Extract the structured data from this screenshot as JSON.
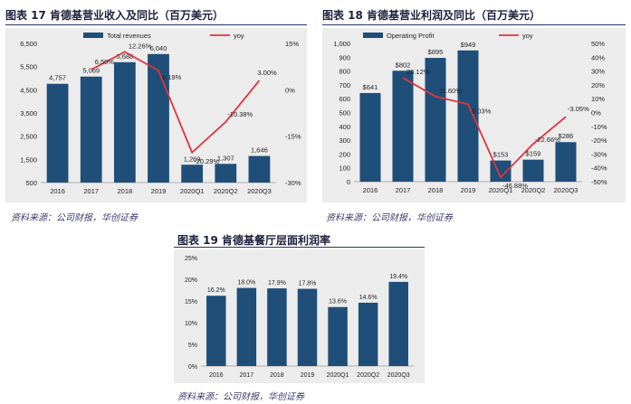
{
  "charts": [
    {
      "title": "图表 17   肯德基营业收入及同比（百万美元）",
      "source": "资料来源：公司财报，华创证券"
    },
    {
      "title": "图表 18   肯德基营业利润及同比（百万美元）",
      "source": "资料来源：公司财报，华创证券"
    },
    {
      "title": "图表 19   肯德基餐厅层面利润率",
      "source": "资料来源：公司财报，华创证券"
    }
  ],
  "colors": {
    "bar": "#1f4e79",
    "line": "#e0343c",
    "panel": "#ececec",
    "title": "#1f1f3d"
  },
  "chart_data": [
    {
      "type": "bar",
      "title": "肯德基营业收入及同比（百万美元）",
      "categories": [
        "2016",
        "2017",
        "2018",
        "2019",
        "2020Q1",
        "2020Q2",
        "2020Q3"
      ],
      "series": [
        {
          "name": "Total revenues",
          "type": "bar",
          "axis": "left",
          "values": [
            4757,
            5069,
            5688,
            6040,
            1269,
            1307,
            1646
          ],
          "labels": [
            "4,757",
            "5,069",
            "5,688",
            "6,040",
            "1,269",
            "1,307",
            "1,646"
          ]
        },
        {
          "name": "yoy",
          "type": "line",
          "axis": "right",
          "values": [
            null,
            6.5,
            12.26,
            6.19,
            -20.29,
            -10.38,
            3.0
          ],
          "labels": [
            "",
            "6.50%",
            "12.26%",
            "6.19%",
            "-20.29%",
            "-10.38%",
            "3.00%"
          ]
        }
      ],
      "y_left": {
        "min": 500,
        "max": 6500,
        "ticks": [
          "500",
          "1,500",
          "2,500",
          "3,500",
          "4,500",
          "5,500",
          "6,500"
        ]
      },
      "y_right": {
        "min": -30,
        "max": 15,
        "ticks": [
          "15%",
          "0%",
          "-15%",
          "-30%"
        ]
      },
      "legend": "top"
    },
    {
      "type": "bar",
      "title": "肯德基营业利润及同比（百万美元）",
      "categories": [
        "2016",
        "2017",
        "2018",
        "2019",
        "2020Q1",
        "2020Q2",
        "2020Q3"
      ],
      "series": [
        {
          "name": "Operating Profit",
          "type": "bar",
          "axis": "left",
          "values": [
            641,
            802,
            895,
            949,
            153,
            159,
            286
          ],
          "labels": [
            "$641",
            "$802",
            "$895",
            "$949",
            "$153",
            "$159",
            "$286"
          ]
        },
        {
          "name": "yoy",
          "type": "line",
          "axis": "right",
          "values": [
            null,
            25.12,
            11.6,
            6.03,
            -46.88,
            -22.66,
            -3.05
          ],
          "labels": [
            "",
            "25.12%",
            "11.60%",
            "6.03%",
            "-46.88%",
            "-22.66%",
            "-3.05%"
          ]
        }
      ],
      "y_left": {
        "min": 0,
        "max": 1000,
        "ticks": [
          "0",
          "100",
          "200",
          "300",
          "400",
          "500",
          "600",
          "700",
          "800",
          "900",
          "1,000"
        ]
      },
      "y_right": {
        "min": -50,
        "max": 50,
        "ticks": [
          "50%",
          "40%",
          "30%",
          "20%",
          "10%",
          "0%",
          "-10%",
          "-20%",
          "-30%",
          "-40%",
          "-50%"
        ]
      },
      "legend": "top"
    },
    {
      "type": "bar",
      "title": "肯德基餐厅层面利润率",
      "categories": [
        "2016",
        "2017",
        "2018",
        "2019",
        "2020Q1",
        "2020Q2",
        "2020Q3"
      ],
      "series": [
        {
          "name": "restaurant margin",
          "type": "bar",
          "axis": "left",
          "values": [
            16.2,
            18.0,
            17.9,
            17.8,
            13.6,
            14.6,
            19.4
          ],
          "labels": [
            "16.2%",
            "18.0%",
            "17.9%",
            "17.8%",
            "13.6%",
            "14.6%",
            "19.4%"
          ]
        }
      ],
      "y_left": {
        "min": 0,
        "max": 25,
        "ticks": [
          "0%",
          "5%",
          "10%",
          "15%",
          "20%",
          "25%"
        ]
      }
    }
  ]
}
